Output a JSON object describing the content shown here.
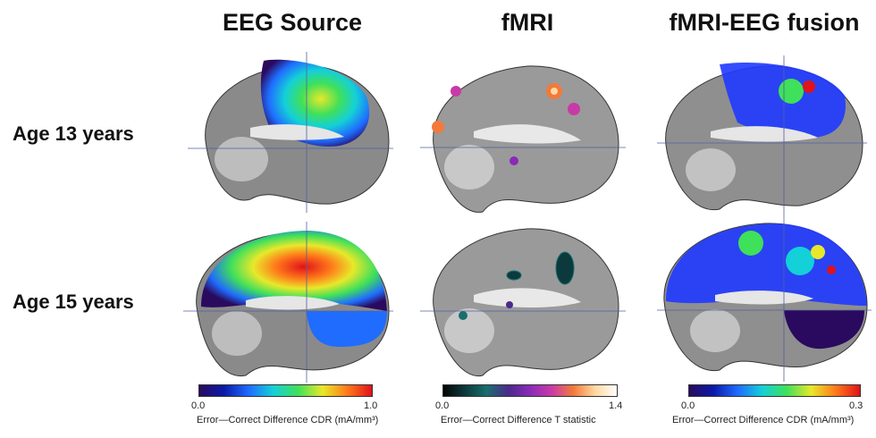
{
  "columns": [
    {
      "title": "EEG Source",
      "colormap": "jet-purple",
      "colorbar": {
        "min": "0.0",
        "max": "1.0",
        "label": "Error—Correct Difference CDR (mA/mm³)",
        "stops": [
          "#2a0a5e",
          "#0a1aa8",
          "#1f6cff",
          "#14d0d8",
          "#3fe05a",
          "#e8e82a",
          "#ff7a1a",
          "#e0121a"
        ]
      }
    },
    {
      "title": "fMRI",
      "colormap": "hot-teal",
      "colorbar": {
        "min": "0.0",
        "max": "1.4",
        "label": "Error—Correct Difference T statistic",
        "stops": [
          "#050505",
          "#0c3a3c",
          "#1a6e6e",
          "#4a2a8a",
          "#8a2ab8",
          "#c83aa8",
          "#f27a3a",
          "#ffd9a0",
          "#ffffff"
        ]
      }
    },
    {
      "title": "fMRI-EEG fusion",
      "colormap": "jet-purple",
      "colorbar": {
        "min": "0.0",
        "max": "0.3",
        "label": "Error—Correct Difference CDR (mA/mm³)",
        "stops": [
          "#2a0a5e",
          "#0a1aa8",
          "#1f6cff",
          "#14d0d8",
          "#3fe05a",
          "#e8e82a",
          "#ff7a1a",
          "#e0121a"
        ]
      }
    }
  ],
  "rows": [
    {
      "label": "Age 13 years"
    },
    {
      "label": "Age 15 years"
    }
  ]
}
